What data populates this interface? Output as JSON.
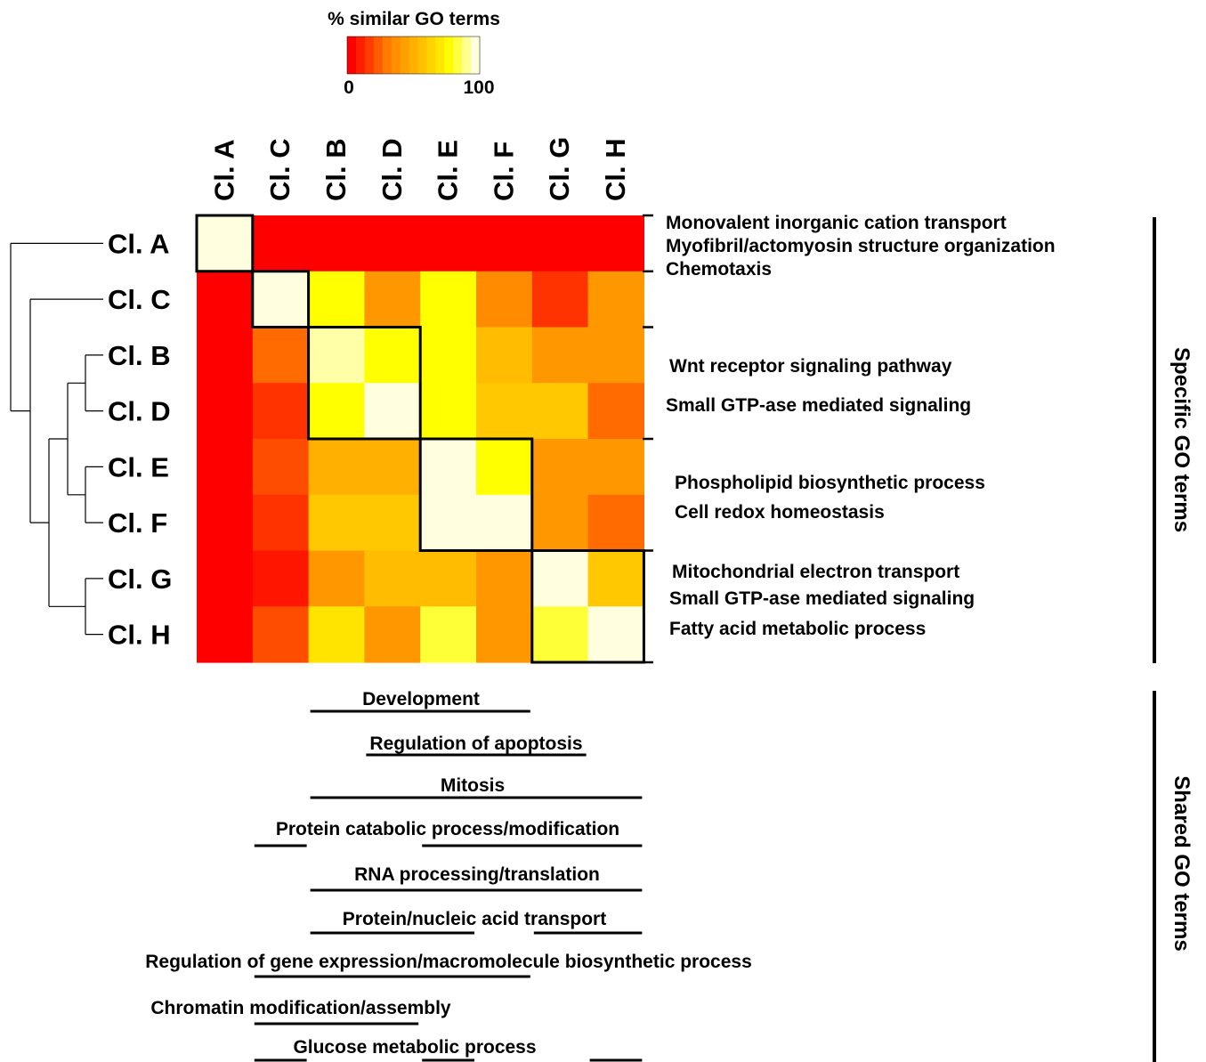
{
  "chart_data": {
    "type": "heatmap",
    "colorbar": {
      "title": "% similar GO terms",
      "min_label": "0",
      "max_label": "100",
      "range": [
        0,
        100
      ]
    },
    "rows": [
      "Cl. A",
      "Cl. C",
      "Cl. B",
      "Cl. D",
      "Cl. E",
      "Cl. F",
      "Cl. G",
      "Cl. H"
    ],
    "columns": [
      "Cl. A",
      "Cl. C",
      "Cl. B",
      "Cl. D",
      "Cl. E",
      "Cl. F",
      "Cl. G",
      "Cl. H"
    ],
    "values": [
      [
        100,
        0,
        0,
        0,
        0,
        0,
        0,
        0
      ],
      [
        0,
        100,
        80,
        40,
        80,
        35,
        12,
        40
      ],
      [
        0,
        25,
        95,
        80,
        80,
        55,
        40,
        40
      ],
      [
        0,
        12,
        80,
        100,
        80,
        60,
        60,
        25
      ],
      [
        0,
        18,
        50,
        50,
        100,
        80,
        40,
        40
      ],
      [
        0,
        12,
        60,
        60,
        100,
        100,
        40,
        25
      ],
      [
        0,
        5,
        40,
        55,
        55,
        40,
        100,
        60
      ],
      [
        0,
        18,
        70,
        40,
        85,
        40,
        85,
        100
      ]
    ],
    "cluster_blocks": [
      [
        0,
        0
      ],
      [
        1,
        1
      ],
      [
        2,
        3
      ],
      [
        4,
        5
      ],
      [
        6,
        7
      ]
    ],
    "dendrogram": "Cl. A | ((Cl. C) | (((Cl. B, Cl. D), (Cl. E, Cl. F)), (Cl. G, Cl. H)))",
    "specific_go_terms": {
      "label": "Specific GO terms",
      "groups": [
        [
          "Monovalent inorganic cation transport",
          "Myofibril/actomyosin structure organization",
          "Chemotaxis"
        ],
        [],
        [
          "Wnt receptor signaling pathway",
          "Small GTP-ase mediated signaling"
        ],
        [
          "Phospholipid biosynthetic process",
          "Cell redox homeostasis"
        ],
        [
          "Mitochondrial electron transport",
          "Small GTP-ase mediated signaling",
          "Fatty acid metabolic process"
        ]
      ]
    },
    "shared_go_terms": {
      "label": "Shared GO terms",
      "terms": [
        {
          "name": "Development",
          "columns": [
            "Cl. B",
            "Cl. D",
            "Cl. E",
            "Cl. F"
          ]
        },
        {
          "name": "Regulation of apoptosis",
          "columns": [
            "Cl. D",
            "Cl. E",
            "Cl. F",
            "Cl. G"
          ]
        },
        {
          "name": "Mitosis",
          "columns": [
            "Cl. B",
            "Cl. D",
            "Cl. E",
            "Cl. F",
            "Cl. G",
            "Cl. H"
          ]
        },
        {
          "name": "Protein catabolic process/modification",
          "columns": [
            "Cl. C",
            "Cl. E",
            "Cl. F",
            "Cl. G",
            "Cl. H"
          ]
        },
        {
          "name": "RNA processing/translation",
          "columns": [
            "Cl. B",
            "Cl. D",
            "Cl. E",
            "Cl. F",
            "Cl. G",
            "Cl. H"
          ]
        },
        {
          "name": "Protein/nucleic acid transport",
          "columns": [
            "Cl. B",
            "Cl. D",
            "Cl. E",
            "Cl. G",
            "Cl. H"
          ]
        },
        {
          "name": "Regulation of gene expression/macromolecule biosynthetic process",
          "columns": [
            "Cl. C",
            "Cl. B",
            "Cl. D",
            "Cl. E",
            "Cl. F"
          ]
        },
        {
          "name": "Chromatin modification/assembly",
          "columns": [
            "Cl. C",
            "Cl. B",
            "Cl. D"
          ]
        },
        {
          "name": "Glucose metabolic process",
          "columns": [
            "Cl. C",
            "Cl. E",
            "Cl. H"
          ]
        }
      ]
    }
  }
}
